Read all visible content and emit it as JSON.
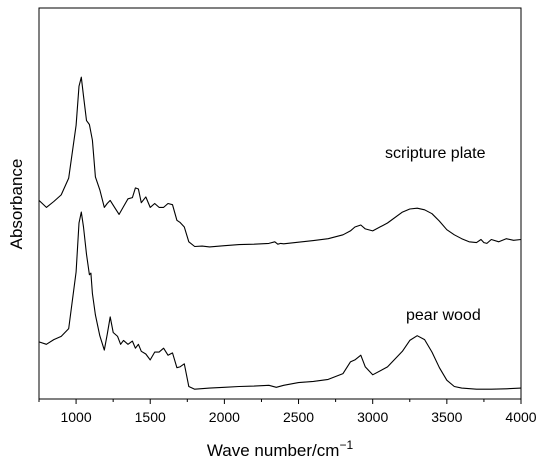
{
  "chart_data": {
    "type": "line",
    "xlabel": "Wave number/cm",
    "xlabel_superscript": "−1",
    "ylabel": "Absorbance",
    "xlim": [
      750,
      4000
    ],
    "ylim": [
      0,
      1
    ],
    "xticks": [
      1000,
      1500,
      2000,
      2500,
      3000,
      3500,
      4000
    ],
    "xtick_labels": [
      "1000",
      "1500",
      "2000",
      "2500",
      "3000",
      "3500",
      "4000"
    ],
    "y_ticks_shown": false,
    "grid": false,
    "series": [
      {
        "name": "scripture plate",
        "x": [
          750,
          800,
          850,
          900,
          950,
          1000,
          1020,
          1035,
          1050,
          1070,
          1090,
          1110,
          1130,
          1160,
          1190,
          1210,
          1230,
          1260,
          1290,
          1320,
          1350,
          1380,
          1400,
          1420,
          1440,
          1470,
          1500,
          1530,
          1560,
          1590,
          1620,
          1650,
          1680,
          1700,
          1730,
          1760,
          1800,
          1850,
          1900,
          2000,
          2100,
          2200,
          2300,
          2340,
          2360,
          2380,
          2400,
          2500,
          2600,
          2700,
          2800,
          2850,
          2880,
          2920,
          2950,
          3000,
          3100,
          3200,
          3250,
          3300,
          3350,
          3400,
          3450,
          3500,
          3550,
          3600,
          3650,
          3700,
          3730,
          3750,
          3770,
          3800,
          3850,
          3900,
          3950,
          4000
        ],
        "y": [
          0.508,
          0.49,
          0.505,
          0.522,
          0.565,
          0.7,
          0.8,
          0.823,
          0.775,
          0.712,
          0.702,
          0.662,
          0.568,
          0.535,
          0.49,
          0.5,
          0.508,
          0.49,
          0.472,
          0.492,
          0.512,
          0.515,
          0.54,
          0.537,
          0.502,
          0.517,
          0.49,
          0.5,
          0.49,
          0.49,
          0.5,
          0.497,
          0.457,
          0.452,
          0.44,
          0.402,
          0.39,
          0.391,
          0.389,
          0.392,
          0.395,
          0.396,
          0.398,
          0.402,
          0.396,
          0.398,
          0.397,
          0.401,
          0.405,
          0.41,
          0.42,
          0.43,
          0.44,
          0.445,
          0.435,
          0.43,
          0.45,
          0.478,
          0.486,
          0.488,
          0.484,
          0.474,
          0.455,
          0.433,
          0.42,
          0.41,
          0.402,
          0.4,
          0.408,
          0.4,
          0.398,
          0.408,
          0.402,
          0.41,
          0.406,
          0.408
        ]
      },
      {
        "name": "pear wood",
        "x": [
          750,
          800,
          850,
          900,
          950,
          1000,
          1020,
          1035,
          1050,
          1070,
          1090,
          1100,
          1110,
          1130,
          1160,
          1190,
          1210,
          1230,
          1250,
          1280,
          1300,
          1320,
          1350,
          1380,
          1400,
          1420,
          1440,
          1470,
          1500,
          1530,
          1560,
          1590,
          1620,
          1650,
          1680,
          1700,
          1730,
          1760,
          1800,
          1900,
          2000,
          2100,
          2200,
          2300,
          2350,
          2400,
          2500,
          2600,
          2700,
          2800,
          2850,
          2880,
          2920,
          2950,
          3000,
          3100,
          3200,
          3250,
          3300,
          3350,
          3400,
          3450,
          3500,
          3550,
          3600,
          3700,
          3800,
          3900,
          4000
        ],
        "y": [
          0.146,
          0.14,
          0.152,
          0.16,
          0.18,
          0.325,
          0.45,
          0.478,
          0.44,
          0.37,
          0.318,
          0.322,
          0.27,
          0.215,
          0.162,
          0.125,
          0.165,
          0.21,
          0.17,
          0.16,
          0.14,
          0.15,
          0.14,
          0.148,
          0.13,
          0.14,
          0.122,
          0.115,
          0.1,
          0.12,
          0.12,
          0.13,
          0.112,
          0.118,
          0.08,
          0.082,
          0.09,
          0.032,
          0.025,
          0.028,
          0.03,
          0.032,
          0.033,
          0.035,
          0.03,
          0.035,
          0.042,
          0.045,
          0.05,
          0.065,
          0.095,
          0.1,
          0.112,
          0.082,
          0.062,
          0.082,
          0.122,
          0.15,
          0.162,
          0.152,
          0.12,
          0.08,
          0.048,
          0.032,
          0.028,
          0.025,
          0.025,
          0.026,
          0.028
        ]
      }
    ],
    "annotations": [
      "scripture plate",
      "pear wood"
    ]
  }
}
